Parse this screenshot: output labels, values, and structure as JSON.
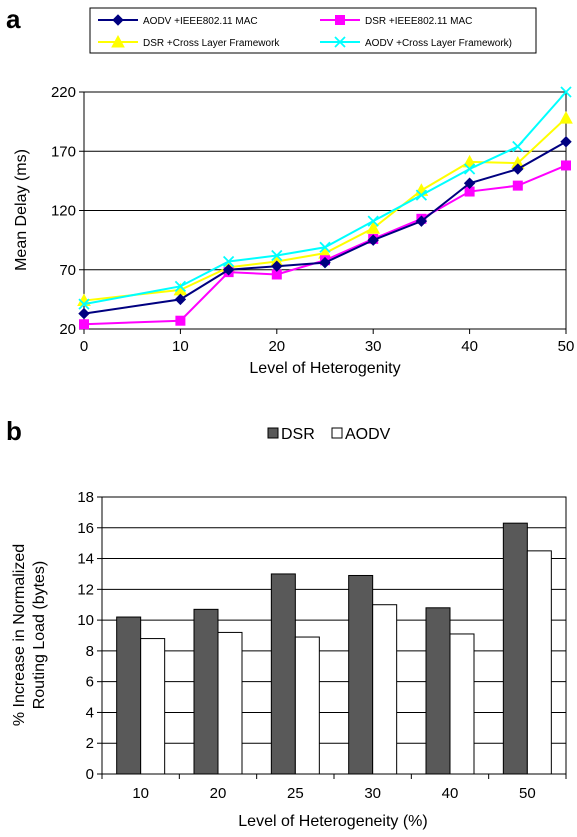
{
  "panels": {
    "a": "a",
    "b": "b"
  },
  "chart_data": [
    {
      "type": "line",
      "x": [
        0,
        10,
        15,
        20,
        25,
        30,
        35,
        40,
        45,
        50
      ],
      "xticks": [
        "0",
        "10",
        "20",
        "30",
        "40",
        "50"
      ],
      "yticks": [
        "20",
        "70",
        "120",
        "170",
        "220"
      ],
      "ylim": [
        20,
        220
      ],
      "xlim": [
        0,
        50
      ],
      "xlabel": "Level of Heterogenity",
      "ylabel": "Mean Delay (ms)",
      "grid": "horizontal",
      "legend_position": "top",
      "series": [
        {
          "name": "AODV +IEEE802.11 MAC",
          "color": "#000080",
          "marker": "diamond",
          "values": [
            33,
            45,
            70,
            73,
            76,
            95,
            111,
            143,
            155,
            178
          ]
        },
        {
          "name": "DSR +IEEE802.11 MAC",
          "color": "#ff00ff",
          "marker": "square",
          "values": [
            24,
            27,
            68,
            66,
            78,
            96,
            113,
            136,
            141,
            158
          ]
        },
        {
          "name": "DSR +Cross Layer Framework",
          "color": "#ffff00",
          "marker": "triangle",
          "values": [
            44,
            53,
            72,
            77,
            84,
            105,
            137,
            161,
            160,
            198
          ]
        },
        {
          "name": "AODV +Cross Layer Framework)",
          "color": "#00ffff",
          "marker": "x",
          "values": [
            41,
            56,
            77,
            82,
            89,
            111,
            133,
            155,
            174,
            220
          ]
        }
      ]
    },
    {
      "type": "bar",
      "categories": [
        "10",
        "20",
        "25",
        "30",
        "40",
        "50"
      ],
      "yticks": [
        "0",
        "2",
        "4",
        "6",
        "8",
        "10",
        "12",
        "14",
        "16",
        "18"
      ],
      "ylim": [
        0,
        18
      ],
      "xlabel": "Level of Heterogeneity (%)",
      "ylabel_lines": [
        "% Increase in Normalized",
        "Routing Load (bytes)"
      ],
      "grid": "horizontal",
      "legend_position": "top",
      "series": [
        {
          "name": "DSR",
          "color": "#595959",
          "values": [
            10.2,
            10.7,
            13.0,
            12.9,
            10.8,
            16.3
          ]
        },
        {
          "name": "AODV",
          "color": "#ffffff",
          "values": [
            8.8,
            9.2,
            8.9,
            11.0,
            9.1,
            14.5
          ]
        }
      ]
    }
  ]
}
